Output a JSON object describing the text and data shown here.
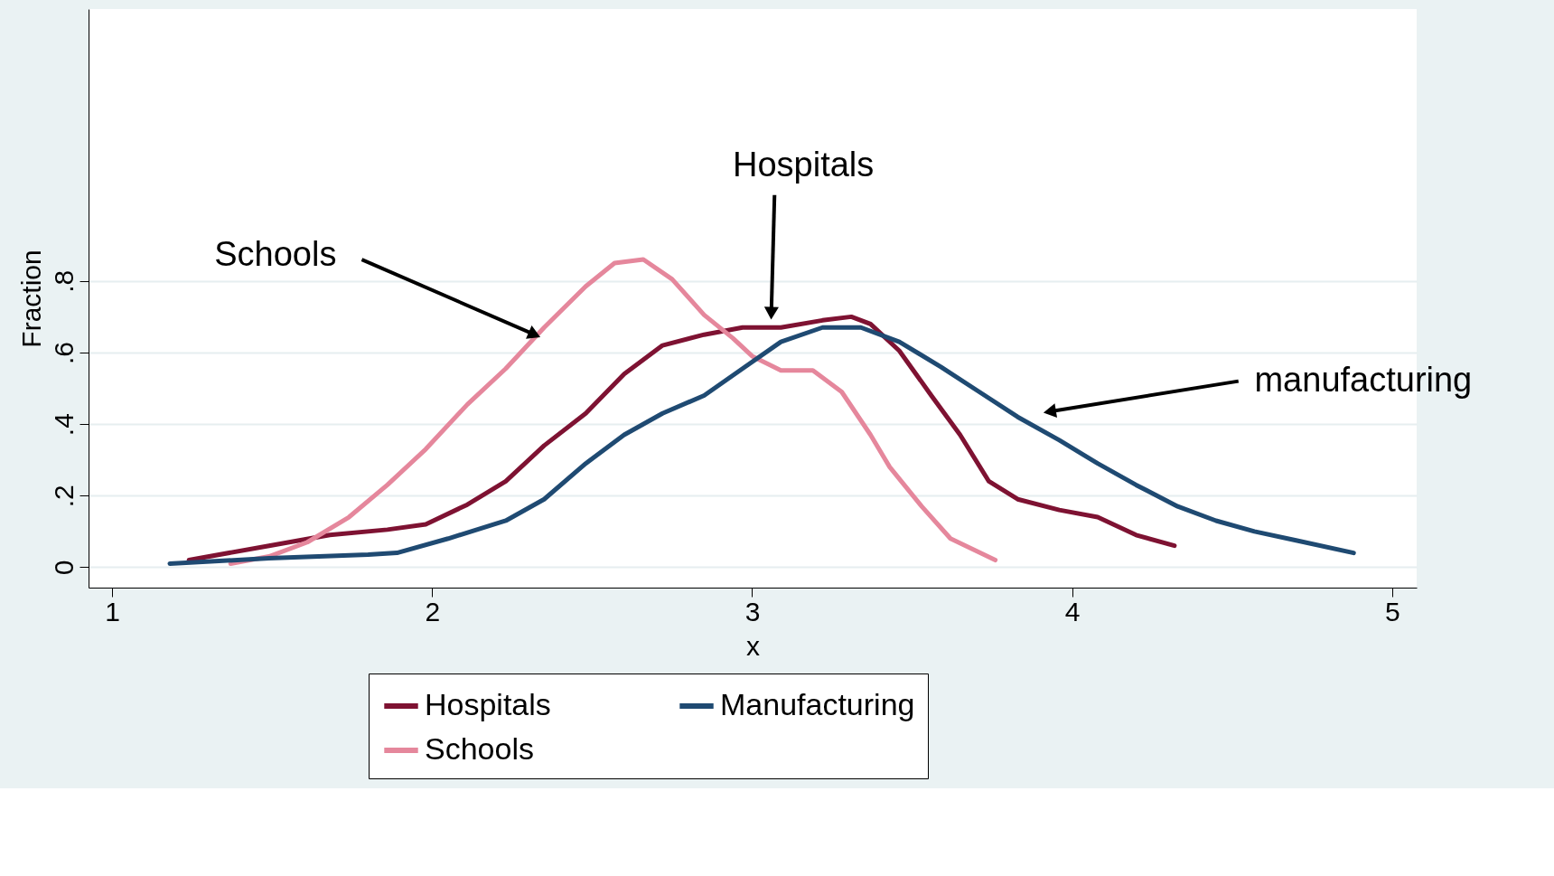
{
  "chart_data": {
    "type": "line",
    "xlabel": "x",
    "ylabel": "Fraction",
    "xlim": [
      0.926,
      5.077
    ],
    "ylim": [
      -0.057,
      1.56
    ],
    "xticks": [
      1,
      2,
      3,
      4,
      5
    ],
    "yticks": [
      0,
      {
        "value": 0.2,
        "label": ".2"
      },
      {
        "value": 0.4,
        "label": ".4"
      },
      {
        "value": 0.6,
        "label": ".6"
      },
      {
        "value": 0.8,
        "label": ".8"
      }
    ],
    "grid": "y",
    "legend": "bottom",
    "line_style": "solid",
    "marker": "none",
    "series": [
      {
        "name": "Hospitals",
        "color": "#7e1232",
        "x": [
          1.24,
          1.49,
          1.68,
          1.86,
          1.98,
          2.11,
          2.23,
          2.35,
          2.48,
          2.6,
          2.72,
          2.85,
          2.97,
          3.09,
          3.22,
          3.31,
          3.37,
          3.46,
          3.56,
          3.65,
          3.74,
          3.83,
          3.96,
          4.08,
          4.2,
          4.32
        ],
        "values": [
          0.02,
          0.06,
          0.09,
          0.105,
          0.12,
          0.175,
          0.24,
          0.34,
          0.43,
          0.54,
          0.62,
          0.65,
          0.67,
          0.67,
          0.69,
          0.7,
          0.68,
          0.605,
          0.48,
          0.37,
          0.24,
          0.19,
          0.16,
          0.14,
          0.09,
          0.06
        ]
      },
      {
        "name": "Schools",
        "color": "#e5879c",
        "x": [
          1.37,
          1.49,
          1.61,
          1.74,
          1.86,
          1.98,
          2.11,
          2.23,
          2.35,
          2.48,
          2.57,
          2.66,
          2.75,
          2.85,
          2.94,
          3.0,
          3.09,
          3.19,
          3.28,
          3.37,
          3.43,
          3.53,
          3.62,
          3.76
        ],
        "values": [
          0.01,
          0.03,
          0.07,
          0.14,
          0.23,
          0.33,
          0.455,
          0.555,
          0.67,
          0.785,
          0.85,
          0.86,
          0.805,
          0.705,
          0.64,
          0.59,
          0.55,
          0.55,
          0.49,
          0.37,
          0.28,
          0.17,
          0.08,
          0.02
        ]
      },
      {
        "name": "Manufacturing",
        "color": "#1f4a72",
        "x": [
          1.18,
          1.49,
          1.8,
          1.89,
          2.05,
          2.23,
          2.35,
          2.48,
          2.6,
          2.72,
          2.85,
          2.97,
          3.09,
          3.22,
          3.34,
          3.46,
          3.59,
          3.71,
          3.83,
          3.96,
          4.08,
          4.2,
          4.33,
          4.45,
          4.57,
          4.7,
          4.88
        ],
        "values": [
          0.01,
          0.025,
          0.035,
          0.04,
          0.08,
          0.13,
          0.19,
          0.29,
          0.37,
          0.43,
          0.48,
          0.555,
          0.63,
          0.67,
          0.67,
          0.63,
          0.56,
          0.49,
          0.42,
          0.355,
          0.29,
          0.23,
          0.17,
          0.13,
          0.1,
          0.075,
          0.04
        ]
      }
    ],
    "annotations": [
      {
        "text": "Hospitals",
        "x": 3.06,
        "y": 0.71
      },
      {
        "text": "Schools",
        "x": 2.32,
        "y": 0.65
      },
      {
        "text": "manufacturing",
        "x": 3.93,
        "y": 0.435
      }
    ]
  }
}
